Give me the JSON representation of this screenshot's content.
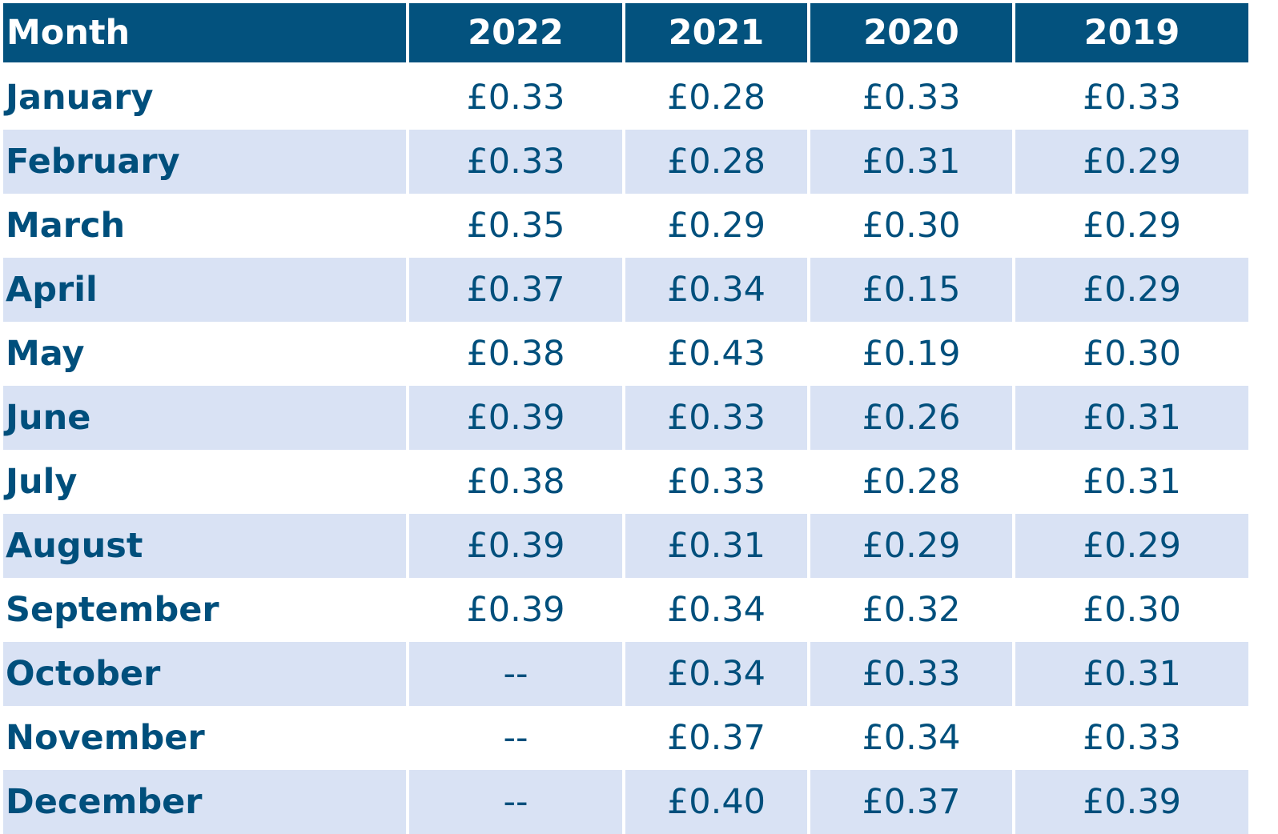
{
  "chart_data": {
    "type": "table",
    "columns": [
      "Month",
      "2022",
      "2021",
      "2020",
      "2019"
    ],
    "rows": [
      [
        "January",
        "£0.33",
        "£0.28",
        "£0.33",
        "£0.33"
      ],
      [
        "February",
        "£0.33",
        "£0.28",
        "£0.31",
        "£0.29"
      ],
      [
        "March",
        "£0.35",
        "£0.29",
        "£0.30",
        "£0.29"
      ],
      [
        "April",
        "£0.37",
        "£0.34",
        "£0.15",
        "£0.29"
      ],
      [
        "May",
        "£0.38",
        "£0.43",
        "£0.19",
        "£0.30"
      ],
      [
        "June",
        "£0.39",
        "£0.33",
        "£0.26",
        "£0.31"
      ],
      [
        "July",
        "£0.38",
        "£0.33",
        "£0.28",
        "£0.31"
      ],
      [
        "August",
        "£0.39",
        "£0.31",
        "£0.29",
        "£0.29"
      ],
      [
        "September",
        "£0.39",
        "£0.34",
        "£0.32",
        "£0.30"
      ],
      [
        "October",
        "--",
        "£0.34",
        "£0.33",
        "£0.31"
      ],
      [
        "November",
        "--",
        "£0.37",
        "£0.34",
        "£0.33"
      ],
      [
        "December",
        "--",
        "£0.40",
        "£0.37",
        "£0.39"
      ]
    ]
  },
  "colors": {
    "header_background": "#03527e",
    "header_text": "#ffffff",
    "body_text": "#004f7c",
    "alternate_row_background": "#d9e2f4",
    "row_background": "#ffffff"
  }
}
